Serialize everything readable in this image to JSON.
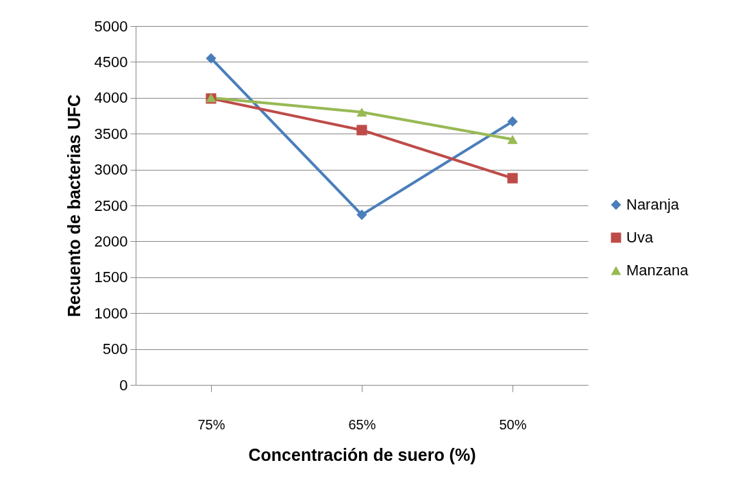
{
  "chart_data": {
    "type": "line",
    "xlabel": "Concentración de suero (%)",
    "ylabel": "Recuento de bacterias UFC",
    "categories": [
      "75%",
      "65%",
      "50%"
    ],
    "series": [
      {
        "name": "Naranja",
        "color": "#4a7ebb",
        "marker": "diamond",
        "values": [
          4550,
          2370,
          3670
        ]
      },
      {
        "name": "Uva",
        "color": "#be4b48",
        "marker": "square",
        "values": [
          3990,
          3550,
          2880
        ]
      },
      {
        "name": "Manzana",
        "color": "#98b954",
        "marker": "triangle",
        "values": [
          4000,
          3800,
          3420
        ]
      }
    ],
    "ylim": [
      0,
      5000
    ],
    "yticks": [
      0,
      500,
      1000,
      1500,
      2000,
      2500,
      3000,
      3500,
      4000,
      4500,
      5000
    ],
    "grid": "y",
    "legend": "right"
  }
}
